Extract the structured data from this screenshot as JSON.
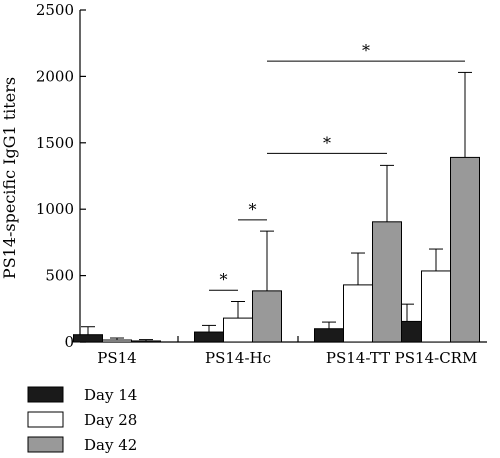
{
  "chart_data": {
    "type": "bar",
    "title": "",
    "xlabel": "",
    "ylabel": "PS14-specific IgG1 titers",
    "ylim": [
      0,
      2500
    ],
    "yticks": [
      "0",
      "500",
      "1000",
      "1500",
      "2000",
      "2500"
    ],
    "categories": [
      "PS14",
      "PS14-Hc",
      "PS14-TT",
      "PS14-CRM"
    ],
    "series": [
      {
        "name": "Day 14",
        "color": "#1a1a1a",
        "values": [
          55,
          75,
          100,
          155
        ],
        "errors": [
          60,
          50,
          50,
          130
        ]
      },
      {
        "name": "Day 28",
        "color": "#ffffff",
        "values": [
          15,
          180,
          430,
          535
        ],
        "errors": [
          15,
          125,
          240,
          165
        ]
      },
      {
        "name": "Day 42",
        "color": "#999999",
        "values": [
          8,
          385,
          905,
          1390
        ],
        "errors": [
          10,
          450,
          425,
          640
        ]
      }
    ],
    "grid": false,
    "legend_position": "bottom-left",
    "significance": [
      {
        "label": "*",
        "from_category": 1,
        "from_series": 0,
        "to_category": 1,
        "to_series": 1,
        "y": 390
      },
      {
        "label": "*",
        "from_category": 1,
        "from_series": 1,
        "to_category": 1,
        "to_series": 2,
        "y": 920
      },
      {
        "label": "*",
        "from_category": 1,
        "from_series": 2,
        "to_category": 2,
        "to_series": 2,
        "y": 1420
      },
      {
        "label": "*",
        "from_category": 1,
        "from_series": 2,
        "to_category": 3,
        "to_series": 2,
        "y": 2115
      }
    ]
  }
}
